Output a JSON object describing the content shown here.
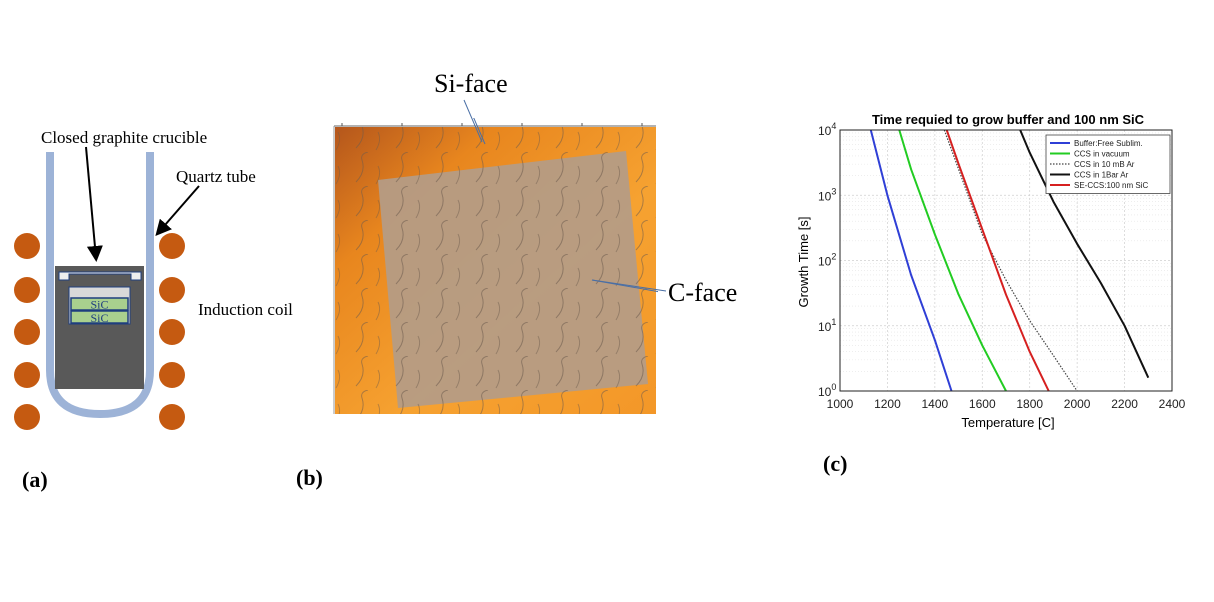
{
  "panel_a": {
    "label": "(a)",
    "crucible_label": "Closed graphite crucible",
    "quartz_label": "Quartz tube",
    "coil_label": "Induction coil",
    "sic_top": "SiC",
    "sic_bottom": "SiC",
    "colors": {
      "coil": "#c55a11",
      "quartz": "#9db3d7",
      "crucible": "#595959",
      "sic": "#a9d08e"
    }
  },
  "panel_b": {
    "label": "(b)",
    "si_face_label": "Si-face",
    "c_face_label": "C-face",
    "colors": {
      "orange": "#f39c2a",
      "overlay": "#b49c86"
    }
  },
  "panel_c": {
    "label": "(c)"
  },
  "chart_data": {
    "type": "line",
    "title": "Time requied to grow buffer and 100 nm SiC",
    "xlabel": "Temperature [C]",
    "ylabel": "Growth Time [s]",
    "xlim": [
      1000,
      2400
    ],
    "ylim": [
      1,
      10000
    ],
    "yscale": "log",
    "grid": true,
    "legend_position": "top-right",
    "x_ticks": [
      "1000",
      "1200",
      "1400",
      "1600",
      "1800",
      "2000",
      "2200",
      "2400"
    ],
    "y_ticks": [
      {
        "base": "10",
        "exp": "0"
      },
      {
        "base": "10",
        "exp": "1"
      },
      {
        "base": "10",
        "exp": "2"
      },
      {
        "base": "10",
        "exp": "3"
      },
      {
        "base": "10",
        "exp": "4"
      }
    ],
    "series": [
      {
        "name": "Buffer:Free Sublim.",
        "color": "#2f3fd6",
        "dash": "solid",
        "x": [
          1130,
          1200,
          1300,
          1400,
          1470
        ],
        "y": [
          10000,
          1000,
          60,
          6,
          1
        ]
      },
      {
        "name": "CCS in vacuum",
        "color": "#22cc22",
        "dash": "solid",
        "x": [
          1250,
          1300,
          1400,
          1500,
          1600,
          1700
        ],
        "y": [
          10000,
          2500,
          250,
          30,
          5,
          1
        ]
      },
      {
        "name": "CCS in 10 mB Ar",
        "color": "#444444",
        "dash": "dotted",
        "x": [
          1440,
          1500,
          1600,
          1700,
          1800,
          1900,
          2000
        ],
        "y": [
          10000,
          2500,
          250,
          50,
          12,
          3.5,
          1
        ]
      },
      {
        "name": "CCS in 1Bar Ar",
        "color": "#111111",
        "dash": "solid",
        "x": [
          1760,
          1800,
          1900,
          2000,
          2100,
          2200,
          2300
        ],
        "y": [
          10000,
          4500,
          800,
          180,
          45,
          10,
          1.6
        ]
      },
      {
        "name": "SE-CCS:100 nm SiC",
        "color": "#d62020",
        "dash": "solid",
        "x": [
          1450,
          1500,
          1600,
          1700,
          1800,
          1880
        ],
        "y": [
          10000,
          3000,
          300,
          30,
          4,
          1
        ]
      }
    ]
  }
}
